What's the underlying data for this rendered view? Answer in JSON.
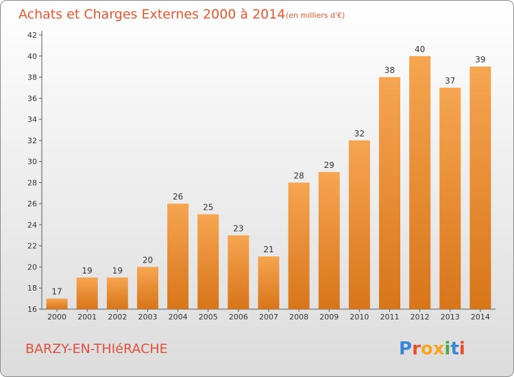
{
  "title": "Achats et Charges Externes 2000 à 2014",
  "subtitle": "(en milliers d'€)",
  "commune": "BARZY-EN-THIéRACHE",
  "logo": {
    "text": "Proxiti",
    "letters": [
      "P",
      "r",
      "o",
      "x",
      "i",
      "t",
      "i"
    ],
    "colors": [
      "#3a86d6",
      "#e84e2c",
      "#f5a623",
      "#f5a623",
      "#4aa84a",
      "#3a86d6",
      "#e84e2c"
    ]
  },
  "colors": {
    "bar_top": "#f6a551",
    "bar_bottom": "#d8751a",
    "title": "#e8552c",
    "commune": "#e04d3c"
  },
  "chart_data": {
    "type": "bar",
    "title": "Achats et Charges Externes 2000 à 2014",
    "subtitle": "(en milliers d'€)",
    "categories": [
      "2000",
      "2001",
      "2002",
      "2003",
      "2004",
      "2005",
      "2006",
      "2007",
      "2008",
      "2009",
      "2010",
      "2011",
      "2012",
      "2013",
      "2014"
    ],
    "values": [
      17,
      19,
      19,
      20,
      26,
      25,
      23,
      21,
      28,
      29,
      32,
      38,
      40,
      37,
      39
    ],
    "ylim": [
      16,
      42
    ],
    "yticks": [
      16,
      18,
      20,
      22,
      24,
      26,
      28,
      30,
      32,
      34,
      36,
      38,
      40,
      42
    ],
    "grid": false,
    "data_labels": true
  }
}
